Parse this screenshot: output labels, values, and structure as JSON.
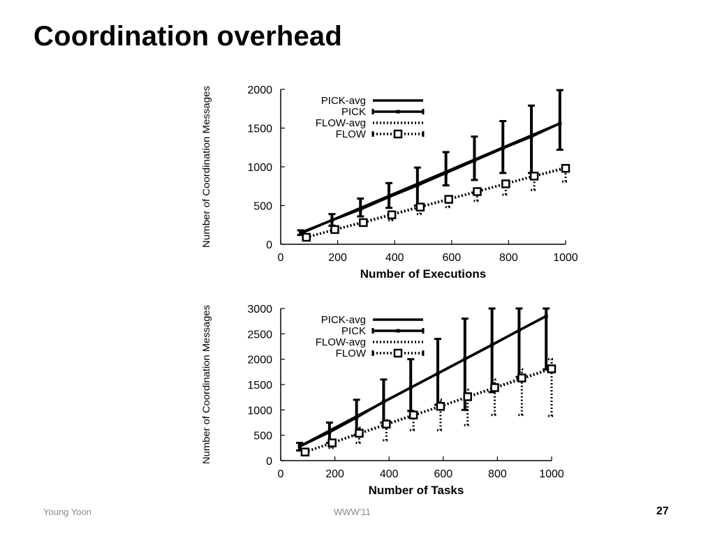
{
  "slide": {
    "title": "Coordination overhead"
  },
  "footer": {
    "author": "Young Yoon",
    "venue": "WWW'11",
    "page": "27"
  },
  "chart_data": [
    {
      "type": "line",
      "title": "",
      "xlabel": "Number of Executions",
      "ylabel": "Number of Coordination Messages",
      "xlim": [
        0,
        1000
      ],
      "ylim": [
        0,
        2000
      ],
      "xticks": [
        0,
        200,
        400,
        600,
        800,
        1000
      ],
      "yticks": [
        0,
        500,
        1000,
        1500,
        2000
      ],
      "legend": "top-left",
      "series": [
        {
          "name": "PICK-avg",
          "style": "solid",
          "x": [
            70,
            980
          ],
          "y": [
            140,
            1560
          ]
        },
        {
          "name": "PICK",
          "style": "solid-errorbar",
          "x": [
            70,
            180,
            280,
            380,
            480,
            580,
            680,
            780,
            880,
            980
          ],
          "y": [
            150,
            310,
            450,
            610,
            760,
            920,
            1080,
            1240,
            1390,
            1560
          ],
          "low": [
            120,
            240,
            360,
            470,
            500,
            760,
            830,
            920,
            920,
            1220
          ],
          "high": [
            180,
            390,
            590,
            790,
            990,
            1190,
            1390,
            1590,
            1790,
            1990
          ]
        },
        {
          "name": "FLOW-avg",
          "style": "dotted",
          "x": [
            90,
            1000
          ],
          "y": [
            90,
            990
          ]
        },
        {
          "name": "FLOW",
          "style": "dotted-errorbar",
          "x": [
            90,
            190,
            290,
            390,
            490,
            590,
            690,
            790,
            890,
            1000
          ],
          "y": [
            90,
            190,
            280,
            380,
            480,
            580,
            680,
            780,
            880,
            980
          ],
          "low": [
            80,
            160,
            240,
            310,
            390,
            480,
            560,
            640,
            700,
            810
          ],
          "high": [
            100,
            220,
            320,
            420,
            520,
            620,
            720,
            810,
            900,
            990
          ]
        }
      ]
    },
    {
      "type": "line",
      "title": "",
      "xlabel": "Number of Tasks",
      "ylabel": "Number of Coordination Messages",
      "xlim": [
        0,
        1000
      ],
      "ylim": [
        0,
        3000
      ],
      "xticks": [
        0,
        200,
        400,
        600,
        800,
        1000
      ],
      "yticks": [
        0,
        500,
        1000,
        1500,
        2000,
        2500,
        3000
      ],
      "legend": "top-left",
      "series": [
        {
          "name": "PICK-avg",
          "style": "solid",
          "x": [
            70,
            980
          ],
          "y": [
            280,
            2850
          ]
        },
        {
          "name": "PICK",
          "style": "solid-errorbar",
          "x": [
            70,
            180,
            280,
            380,
            480,
            580,
            680,
            780,
            880,
            980
          ],
          "y": [
            280,
            560,
            850,
            1160,
            1440,
            1720,
            2000,
            2280,
            2570,
            2850
          ],
          "low": [
            200,
            350,
            500,
            750,
            980,
            1100,
            1000,
            1350,
            1650,
            1800
          ],
          "high": [
            350,
            750,
            1200,
            1600,
            2000,
            2400,
            2800,
            3000,
            3000,
            3000
          ]
        },
        {
          "name": "FLOW-avg",
          "style": "dotted",
          "x": [
            90,
            1000
          ],
          "y": [
            170,
            1810
          ]
        },
        {
          "name": "FLOW",
          "style": "dotted-errorbar",
          "x": [
            90,
            190,
            290,
            390,
            490,
            590,
            690,
            790,
            890,
            1000
          ],
          "y": [
            170,
            350,
            540,
            720,
            900,
            1070,
            1260,
            1440,
            1630,
            1810
          ],
          "low": [
            130,
            250,
            350,
            400,
            600,
            600,
            700,
            900,
            900,
            880
          ],
          "high": [
            200,
            400,
            650,
            800,
            950,
            1200,
            1400,
            1600,
            1800,
            2000
          ]
        }
      ]
    }
  ]
}
